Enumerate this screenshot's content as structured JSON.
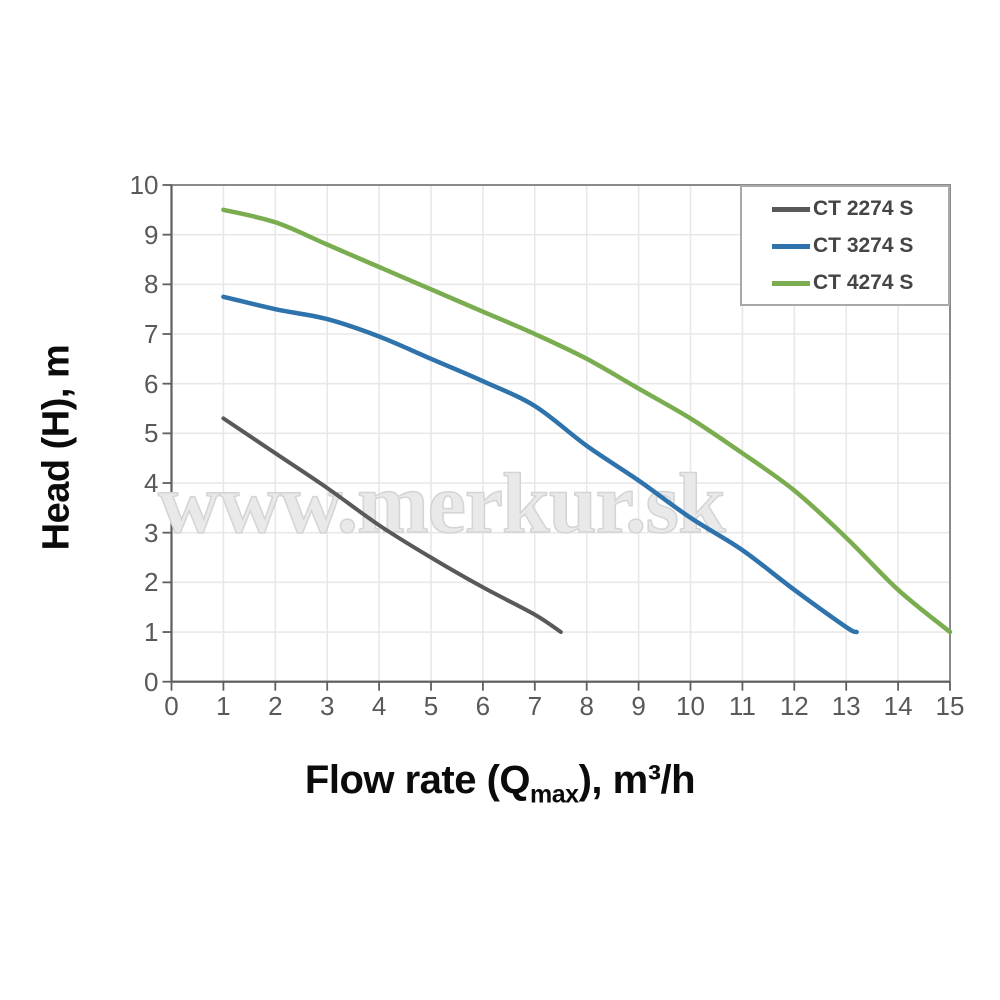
{
  "watermark": "www.merkur.sk",
  "chart_data": {
    "type": "line",
    "title": "",
    "ylabel": "Head (H), m",
    "xlabel": {
      "pre": "Flow rate (Q",
      "sub": "max",
      "post": "), m³/h"
    },
    "xlim": [
      0,
      15
    ],
    "ylim": [
      0,
      10
    ],
    "x_tick_labels": [
      "0",
      "1",
      "2",
      "3",
      "4",
      "5",
      "6",
      "7",
      "8",
      "9",
      "10",
      "11",
      "12",
      "13",
      "14",
      "15"
    ],
    "y_tick_labels": [
      "0",
      "1",
      "2",
      "3",
      "4",
      "5",
      "6",
      "7",
      "8",
      "9",
      "10"
    ],
    "grid": true,
    "legend_position": "top-right",
    "series": [
      {
        "name": "CT 2274 S",
        "color": "#58595b",
        "line_width": 4,
        "points": [
          [
            1,
            5.3
          ],
          [
            2,
            4.6
          ],
          [
            3,
            3.9
          ],
          [
            4,
            3.15
          ],
          [
            5,
            2.5
          ],
          [
            6,
            1.9
          ],
          [
            7,
            1.35
          ],
          [
            7.5,
            1.0
          ]
        ]
      },
      {
        "name": "CT 3274 S",
        "color": "#2f73ad",
        "line_width": 4.5,
        "points": [
          [
            1,
            7.75
          ],
          [
            2,
            7.5
          ],
          [
            3,
            7.3
          ],
          [
            4,
            6.95
          ],
          [
            5,
            6.5
          ],
          [
            6,
            6.05
          ],
          [
            7,
            5.55
          ],
          [
            8,
            4.75
          ],
          [
            9,
            4.05
          ],
          [
            10,
            3.3
          ],
          [
            11,
            2.65
          ],
          [
            12,
            1.85
          ],
          [
            13,
            1.1
          ],
          [
            13.2,
            1.0
          ]
        ]
      },
      {
        "name": "CT 4274 S",
        "color": "#7aad4f",
        "line_width": 4.5,
        "points": [
          [
            1,
            9.5
          ],
          [
            2,
            9.25
          ],
          [
            3,
            8.8
          ],
          [
            4,
            8.35
          ],
          [
            5,
            7.9
          ],
          [
            6,
            7.45
          ],
          [
            7,
            7.0
          ],
          [
            8,
            6.5
          ],
          [
            9,
            5.9
          ],
          [
            10,
            5.3
          ],
          [
            11,
            4.6
          ],
          [
            12,
            3.85
          ],
          [
            13,
            2.9
          ],
          [
            14,
            1.85
          ],
          [
            15,
            1.0
          ]
        ]
      }
    ]
  },
  "style_colors": {
    "grid": "#e8e8e8",
    "plot_border": "#8a8a8a",
    "axis_line": "#5f5f5f",
    "tick_mark": "#5f5f5f",
    "tick_text": "#595959",
    "legend_border": "#a9a9a9",
    "legend_text": "#454545"
  }
}
